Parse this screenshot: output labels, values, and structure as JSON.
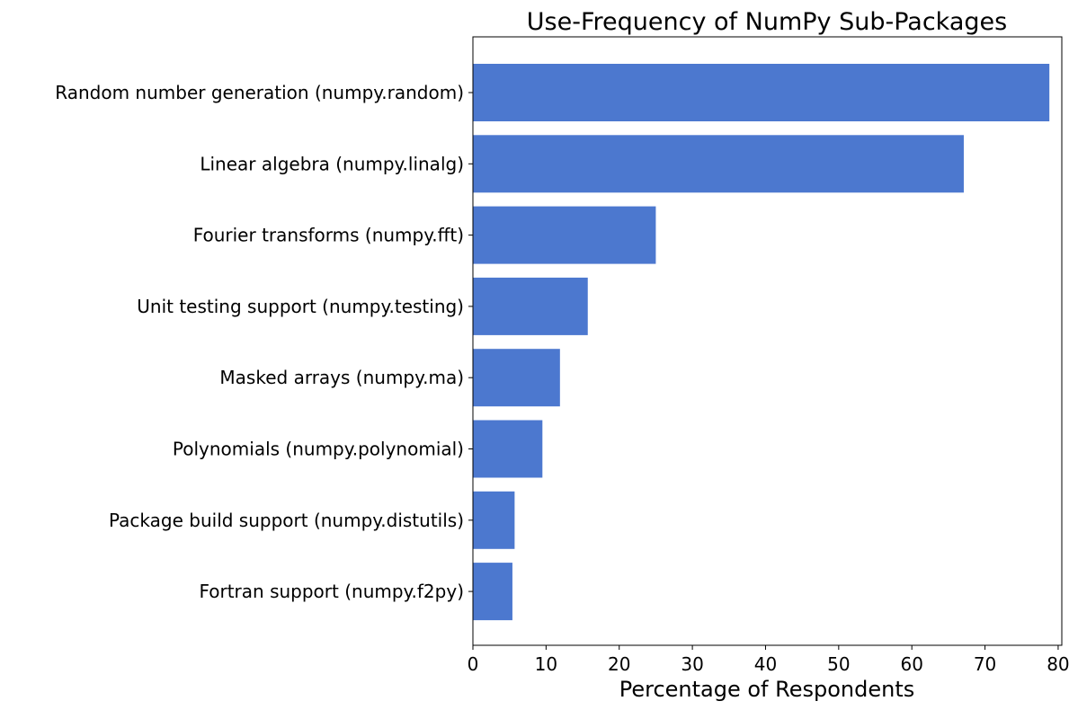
{
  "chart_data": {
    "type": "bar",
    "orientation": "horizontal",
    "title": "Use-Frequency of NumPy Sub-Packages",
    "xlabel": "Percentage of Respondents",
    "ylabel": "",
    "categories": [
      "Random number generation (numpy.random)",
      "Linear algebra (numpy.linalg)",
      "Fourier transforms (numpy.fft)",
      "Unit testing support (numpy.testing)",
      "Masked arrays (numpy.ma)",
      "Polynomials (numpy.polynomial)",
      "Package build support (numpy.distutils)",
      "Fortran support (numpy.f2py)"
    ],
    "values": [
      78.8,
      67.1,
      25.0,
      15.7,
      11.9,
      9.5,
      5.7,
      5.4
    ],
    "xlim": [
      0,
      80.5
    ],
    "xticks": [
      "0",
      "10",
      "20",
      "30",
      "40",
      "50",
      "60",
      "70",
      "80"
    ],
    "bar_color": "#4c78cf",
    "grid": false
  }
}
